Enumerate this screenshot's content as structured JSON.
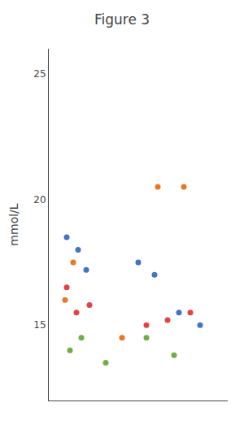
{
  "chart_data": {
    "type": "scatter",
    "title": "Figure 3",
    "y_label": "mmol/L",
    "series": [
      {
        "color": "#4472c4",
        "x": [
          0.06,
          0.13,
          0.18,
          0.5,
          0.6,
          0.75,
          0.88
        ],
        "values": [
          18.5,
          18.0,
          17.2,
          17.5,
          17.0,
          15.5,
          15.0
        ]
      },
      {
        "color": "#e87722",
        "x": [
          0.05,
          0.1,
          0.4,
          0.62,
          0.78
        ],
        "values": [
          16.0,
          17.5,
          14.5,
          20.5,
          20.5
        ]
      },
      {
        "color": "#70ad47",
        "x": [
          0.08,
          0.15,
          0.3,
          0.55,
          0.72
        ],
        "values": [
          14.0,
          14.5,
          13.5,
          14.5,
          13.8
        ]
      },
      {
        "color": "#e84040",
        "x": [
          0.06,
          0.12,
          0.2,
          0.55,
          0.68,
          0.82
        ],
        "values": [
          16.5,
          15.5,
          15.8,
          15.0,
          15.2,
          15.5
        ]
      }
    ],
    "xlim": [
      -0.05,
      1.05
    ],
    "ylim": [
      12,
      26
    ],
    "yticks": [
      15,
      20,
      25
    ],
    "grid": false,
    "tick_labels": "y"
  }
}
